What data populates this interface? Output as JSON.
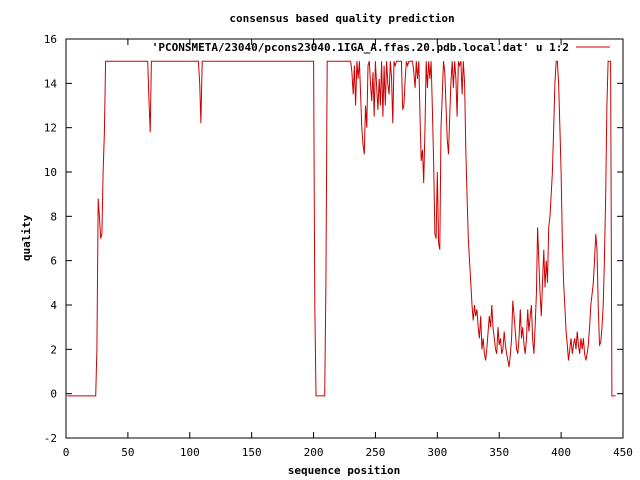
{
  "chart_data": {
    "type": "line",
    "title": "consensus based quality prediction",
    "xlabel": "sequence position",
    "ylabel": "quality",
    "xlim": [
      0,
      450
    ],
    "ylim": [
      -2,
      16
    ],
    "xticks": [
      0,
      50,
      100,
      150,
      200,
      250,
      300,
      350,
      400,
      450
    ],
    "yticks": [
      -2,
      0,
      2,
      4,
      6,
      8,
      10,
      12,
      14,
      16
    ],
    "grid": false,
    "legend": "top-right",
    "series": [
      {
        "name": "'PCONSMETA/23040/pcons23040.1IGA_A.ffas.20.pdb.local.dat' u 1:2",
        "color": "#cc0000",
        "x": [
          1,
          24,
          25,
          26,
          27,
          28,
          29,
          30,
          31,
          32,
          33,
          34,
          35,
          40,
          50,
          60,
          65,
          66,
          67,
          68,
          69,
          70,
          80,
          100,
          107,
          108,
          109,
          110,
          111,
          120,
          150,
          180,
          199,
          200,
          201,
          202,
          203,
          204,
          205,
          206,
          207,
          208,
          209,
          210,
          211,
          212,
          213,
          214,
          215,
          220,
          225,
          229,
          230,
          231,
          232,
          233,
          234,
          235,
          236,
          237,
          238,
          239,
          240,
          241,
          242,
          243,
          244,
          245,
          246,
          247,
          248,
          249,
          250,
          251,
          252,
          253,
          254,
          255,
          256,
          257,
          258,
          259,
          260,
          261,
          262,
          263,
          264,
          265,
          266,
          267,
          268,
          269,
          270,
          271,
          272,
          273,
          274,
          275,
          276,
          277,
          278,
          279,
          280,
          281,
          282,
          283,
          284,
          285,
          286,
          287,
          288,
          289,
          290,
          291,
          292,
          293,
          294,
          295,
          296,
          297,
          298,
          299,
          300,
          301,
          302,
          303,
          304,
          305,
          306,
          307,
          308,
          309,
          310,
          311,
          312,
          313,
          314,
          315,
          316,
          317,
          318,
          319,
          320,
          321,
          322,
          323,
          324,
          325,
          326,
          327,
          328,
          329,
          330,
          331,
          332,
          333,
          334,
          335,
          336,
          337,
          338,
          339,
          340,
          341,
          342,
          343,
          344,
          345,
          346,
          347,
          348,
          349,
          350,
          351,
          352,
          353,
          354,
          355,
          356,
          357,
          358,
          359,
          360,
          361,
          362,
          363,
          364,
          365,
          366,
          367,
          368,
          369,
          370,
          371,
          372,
          373,
          374,
          375,
          376,
          377,
          378,
          379,
          380,
          381,
          382,
          383,
          384,
          385,
          386,
          387,
          388,
          389,
          390,
          391,
          392,
          393,
          394,
          395,
          396,
          397,
          398,
          399,
          400,
          401,
          402,
          403,
          404,
          405,
          406,
          407,
          408,
          409,
          410,
          411,
          412,
          413,
          414,
          415,
          416,
          417,
          418,
          419,
          420,
          421,
          422,
          423,
          424,
          425,
          426,
          427,
          428,
          429,
          430,
          431,
          432,
          433,
          434,
          435,
          436,
          437,
          438,
          439,
          440,
          441,
          442,
          443,
          444
        ],
        "y": [
          -0.1,
          -0.1,
          2.0,
          8.8,
          8.0,
          7.0,
          7.2,
          10.0,
          11.8,
          15.0,
          15.0,
          15.0,
          15.0,
          15.0,
          15.0,
          15.0,
          15.0,
          15.0,
          13.3,
          11.8,
          15.0,
          15.0,
          15.0,
          15.0,
          15.0,
          14.0,
          12.2,
          15.0,
          15.0,
          15.0,
          15.0,
          15.0,
          15.0,
          15.0,
          4.0,
          -0.1,
          -0.1,
          -0.1,
          -0.1,
          -0.1,
          -0.1,
          -0.1,
          -0.1,
          5.0,
          15.0,
          15.0,
          15.0,
          15.0,
          15.0,
          15.0,
          15.0,
          15.0,
          15.0,
          14.5,
          13.5,
          14.8,
          13.0,
          15.0,
          14.2,
          15.0,
          13.5,
          12.0,
          11.2,
          10.8,
          13.0,
          12.0,
          14.8,
          15.0,
          14.0,
          13.2,
          14.5,
          12.5,
          15.0,
          13.8,
          12.8,
          14.2,
          13.0,
          15.0,
          12.5,
          14.8,
          13.0,
          15.0,
          14.0,
          13.5,
          15.0,
          14.3,
          12.2,
          15.0,
          14.8,
          15.0,
          15.0,
          15.0,
          15.0,
          15.0,
          12.8,
          13.0,
          14.2,
          15.0,
          14.8,
          15.0,
          15.0,
          15.0,
          15.0,
          14.5,
          13.8,
          15.0,
          14.2,
          15.0,
          12.5,
          10.5,
          11.0,
          9.5,
          12.0,
          15.0,
          13.8,
          15.0,
          14.2,
          15.0,
          12.8,
          10.5,
          7.2,
          7.0,
          10.0,
          6.8,
          6.5,
          12.0,
          13.5,
          15.0,
          14.5,
          13.0,
          11.5,
          10.8,
          12.5,
          14.0,
          15.0,
          13.8,
          15.0,
          14.2,
          12.5,
          15.0,
          14.8,
          15.0,
          13.5,
          15.0,
          14.0,
          11.0,
          9.0,
          7.0,
          6.0,
          5.0,
          4.0,
          3.3,
          4.0,
          3.5,
          3.8,
          3.0,
          2.5,
          3.5,
          2.0,
          2.5,
          1.8,
          1.5,
          2.0,
          2.8,
          3.5,
          3.0,
          4.0,
          3.0,
          2.5,
          2.0,
          1.8,
          3.0,
          2.2,
          2.5,
          1.8,
          2.0,
          2.8,
          2.2,
          1.8,
          1.5,
          1.2,
          1.8,
          2.5,
          4.2,
          3.5,
          2.8,
          2.0,
          1.8,
          2.5,
          3.8,
          2.5,
          3.0,
          2.2,
          1.8,
          2.5,
          3.8,
          2.8,
          3.5,
          4.0,
          2.5,
          1.8,
          3.0,
          4.5,
          7.5,
          6.0,
          4.5,
          3.5,
          5.0,
          6.5,
          4.8,
          6.0,
          5.0,
          7.5,
          8.0,
          9.0,
          10.0,
          12.0,
          14.0,
          15.0,
          15.0,
          14.0,
          12.0,
          10.0,
          7.0,
          5.0,
          4.0,
          2.8,
          2.2,
          1.5,
          2.0,
          2.5,
          1.8,
          2.2,
          2.5,
          2.0,
          2.8,
          2.2,
          1.8,
          2.5,
          2.0,
          2.5,
          1.8,
          1.5,
          1.8,
          2.2,
          3.0,
          4.0,
          4.5,
          5.0,
          6.0,
          7.2,
          6.5,
          4.0,
          2.2,
          2.3,
          3.0,
          4.0,
          6.0,
          9.0,
          13.0,
          15.0,
          15.0,
          15.0,
          -0.1,
          -0.1,
          -0.1,
          -0.1
        ]
      }
    ]
  }
}
